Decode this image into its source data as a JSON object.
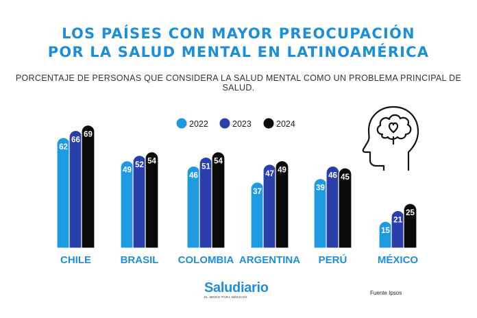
{
  "title_line1": "LOS PAÍSES CON MAYOR PREOCUPACIÓN",
  "title_line2": "POR LA SALUD MENTAL EN LATINOAMÉRICA",
  "subtitle": "PORCENTAJE DE PERSONAS QUE CONSIDERA LA SALUD MENTAL COMO UN PROBLEMA PRINCIPAL DE SALUD.",
  "brand": "Saludiario",
  "brand_tagline": "EL MEDIO PARA MÉDICOS",
  "source": "Fuente Ipsos",
  "icon": "head-brain-heart-icon",
  "colors": {
    "title": "#1e8fd6",
    "s2022": "#1e9ae0",
    "s2023": "#2a3fa8",
    "s2024": "#0a0a0a",
    "category": "#1e8fd6"
  },
  "chart_data": {
    "type": "bar",
    "title": "LOS PAÍSES CON MAYOR PREOCUPACIÓN POR LA SALUD MENTAL EN LATINOAMÉRICA",
    "subtitle": "PORCENTAJE DE PERSONAS QUE CONSIDERA LA SALUD MENTAL COMO UN PROBLEMA PRINCIPAL DE SALUD.",
    "categories": [
      "CHILE",
      "BRASIL",
      "COLOMBIA",
      "ARGENTINA",
      "PERÚ",
      "MÉXICO"
    ],
    "series": [
      {
        "name": "2022",
        "color": "#1e9ae0",
        "values": [
          62,
          49,
          46,
          37,
          39,
          15
        ]
      },
      {
        "name": "2023",
        "color": "#2a3fa8",
        "values": [
          66,
          52,
          51,
          47,
          46,
          21
        ]
      },
      {
        "name": "2024",
        "color": "#0a0a0a",
        "values": [
          69,
          54,
          54,
          49,
          45,
          25
        ]
      }
    ],
    "legend_position": "top-center",
    "grid": false,
    "data_labels": true,
    "ylim": [
      0,
      69
    ]
  }
}
